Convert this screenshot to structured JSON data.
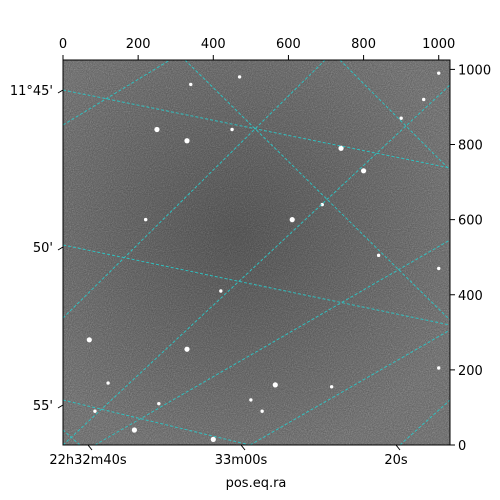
{
  "chart_data": {
    "type": "scatter",
    "title": "",
    "xlabel": "pos.eq.ra",
    "ylabel": "",
    "pixel_axes": {
      "top": {
        "range": [
          0,
          1030
        ],
        "ticks": [
          0,
          200,
          400,
          600,
          800,
          1000
        ]
      },
      "right": {
        "range": [
          0,
          1025
        ],
        "ticks": [
          0,
          200,
          400,
          600,
          800,
          1000
        ]
      }
    },
    "world_axes": {
      "ra_ticks": [
        "22h32m40s",
        "33m00s",
        "20s"
      ],
      "dec_ticks": [
        "11°45'",
        "50'",
        "55'"
      ]
    },
    "image": {
      "background": "#555555",
      "noise": "dark grey star field",
      "grid_color": "#2ec4c4"
    },
    "stars": [
      {
        "x": 330,
        "y": 810,
        "label": ""
      },
      {
        "x": 470,
        "y": 980,
        "label": ""
      },
      {
        "x": 450,
        "y": 840,
        "label": ""
      },
      {
        "x": 250,
        "y": 840,
        "label": ""
      },
      {
        "x": 220,
        "y": 600,
        "label": ""
      },
      {
        "x": 690,
        "y": 640,
        "label": ""
      },
      {
        "x": 800,
        "y": 730,
        "label": ""
      },
      {
        "x": 960,
        "y": 920,
        "label": ""
      },
      {
        "x": 1000,
        "y": 990,
        "label": ""
      },
      {
        "x": 330,
        "y": 255,
        "label": ""
      },
      {
        "x": 120,
        "y": 165,
        "label": ""
      },
      {
        "x": 255,
        "y": 110,
        "label": ""
      },
      {
        "x": 565,
        "y": 160,
        "label": ""
      },
      {
        "x": 715,
        "y": 155,
        "label": ""
      },
      {
        "x": 530,
        "y": 90,
        "label": ""
      },
      {
        "x": 400,
        "y": 15,
        "label": ""
      },
      {
        "x": 1000,
        "y": 205,
        "label": ""
      },
      {
        "x": 85,
        "y": 90,
        "label": ""
      },
      {
        "x": 740,
        "y": 790,
        "label": ""
      },
      {
        "x": 840,
        "y": 505,
        "label": ""
      },
      {
        "x": 1000,
        "y": 470,
        "label": ""
      },
      {
        "x": 70,
        "y": 280,
        "label": ""
      },
      {
        "x": 500,
        "y": 120,
        "label": ""
      },
      {
        "x": 420,
        "y": 410,
        "label": ""
      },
      {
        "x": 610,
        "y": 600,
        "label": ""
      },
      {
        "x": 340,
        "y": 960,
        "label": ""
      },
      {
        "x": 900,
        "y": 870,
        "label": ""
      },
      {
        "x": 190,
        "y": 40,
        "label": ""
      }
    ]
  }
}
